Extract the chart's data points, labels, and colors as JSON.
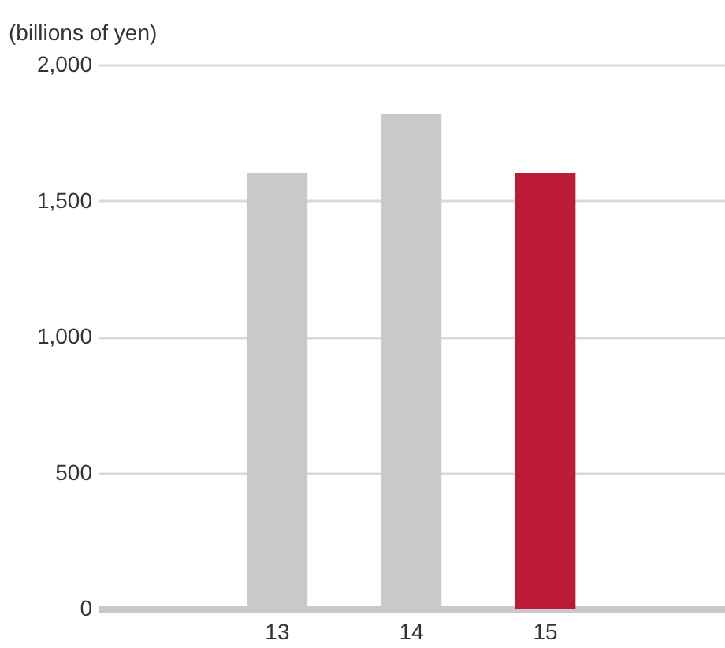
{
  "chart_data": {
    "type": "bar",
    "ylabel": "(billions of yen)",
    "categories": [
      null,
      "13",
      "14",
      "15",
      null
    ],
    "values": [
      null,
      1600,
      1820,
      1600,
      null
    ],
    "colors": [
      "#c8c9c8",
      "#c8c9c8",
      "#c8c9c8",
      "#bb1b37",
      "#c8c9c8"
    ],
    "ylim": [
      0,
      2000
    ],
    "yticks": [
      {
        "value": 0,
        "label": "0"
      },
      {
        "value": 500,
        "label": "500"
      },
      {
        "value": 1000,
        "label": "1,000"
      },
      {
        "value": 1500,
        "label": "1,500"
      },
      {
        "value": 2000,
        "label": "2,000"
      }
    ],
    "grid": "y"
  }
}
